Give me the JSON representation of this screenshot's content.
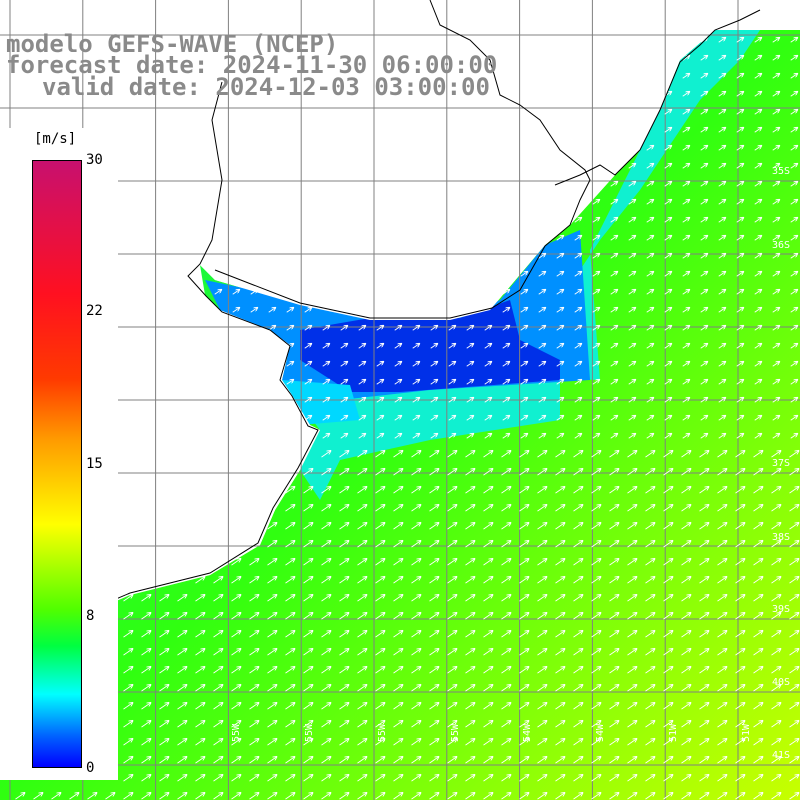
{
  "title": {
    "line1": "modelo GEFS-WAVE (NCEP)",
    "line2": "forecast date: 2024-11-30 06:00:00",
    "line3": "valid date: 2024-12-03 03:00:00"
  },
  "colorbar": {
    "units": "[m/s]",
    "ticks": [
      "30",
      "22",
      "15",
      "8",
      "0"
    ],
    "colors": [
      "#c8106e",
      "#ff1020",
      "#ff9b00",
      "#ffff00",
      "#00ff40",
      "#00ffff",
      "#0000ff"
    ]
  },
  "lat_labels": [
    "35S",
    "36S",
    "37S",
    "38S",
    "39S",
    "40S",
    "41S"
  ],
  "lon_labels": [
    "58W",
    "55W",
    "55W",
    "55W",
    "55W",
    "55W",
    "54W",
    "54W",
    "51W",
    "51W"
  ],
  "colors": {
    "land": "#ffffff",
    "grid": "#808080",
    "coast": "#000000",
    "arrow": "#ffffff"
  }
}
